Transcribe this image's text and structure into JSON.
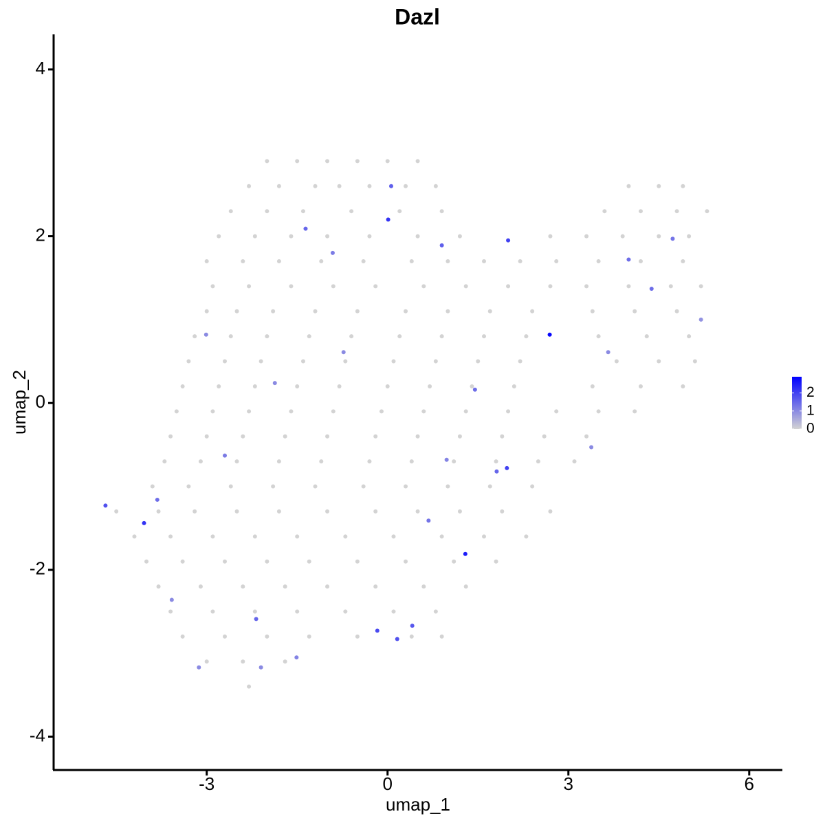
{
  "chart_data": {
    "type": "scatter",
    "title": "Dazl",
    "x_label": "umap_1",
    "y_label": "umap_2",
    "xlim": [
      -5.54,
      6.55
    ],
    "ylim": [
      -4.4,
      4.42
    ],
    "xticks": [
      -3,
      0,
      3,
      6
    ],
    "yticks": [
      -4,
      -2,
      0,
      2,
      4
    ],
    "color_low": "#d3d3d3",
    "color_high": "#0000ff",
    "clim": [
      0,
      2.9
    ],
    "cticks": [
      0,
      1,
      2
    ],
    "x": [
      -2.0,
      -1.5,
      -1.0,
      -0.5,
      0.0,
      0.5,
      -2.3,
      -1.8,
      -1.2,
      -0.8,
      -0.3,
      0.3,
      0.8,
      4.0,
      4.5,
      4.9,
      -2.6,
      -2.0,
      -1.4,
      -0.6,
      0.2,
      0.9,
      3.6,
      4.2,
      4.8,
      5.3,
      -2.8,
      -2.2,
      -1.6,
      -1.0,
      -0.3,
      0.5,
      1.2,
      2.7,
      3.3,
      3.9,
      4.5,
      5.0,
      -3.0,
      -2.4,
      -1.8,
      -1.1,
      -0.4,
      0.4,
      1.0,
      1.6,
      2.2,
      2.8,
      3.5,
      4.2,
      4.9,
      -2.9,
      -2.3,
      -1.6,
      -0.9,
      -0.2,
      0.6,
      1.3,
      2.0,
      2.7,
      3.3,
      4.0,
      4.7,
      5.2,
      -3.0,
      -2.5,
      -1.9,
      -1.2,
      -0.5,
      0.3,
      1.0,
      1.7,
      2.4,
      3.4,
      4.1,
      4.8,
      -3.2,
      -2.6,
      -2.0,
      -1.3,
      -0.6,
      0.2,
      0.9,
      1.6,
      2.3,
      3.5,
      4.3,
      5.0,
      -3.3,
      -2.7,
      -2.1,
      -1.4,
      -0.7,
      0.1,
      0.8,
      1.5,
      2.2,
      3.8,
      4.5,
      5.1,
      -3.4,
      -2.8,
      -2.2,
      -1.5,
      -0.8,
      0.0,
      0.7,
      1.4,
      2.1,
      3.4,
      4.2,
      4.9,
      -3.5,
      -2.9,
      -2.3,
      -1.6,
      -0.9,
      -0.1,
      0.6,
      1.3,
      2.0,
      2.8,
      3.5,
      4.1,
      -3.6,
      -3.0,
      -2.4,
      -1.7,
      -1.0,
      -0.2,
      0.5,
      1.2,
      1.9,
      2.6,
      3.3,
      -3.7,
      -3.1,
      -2.5,
      -1.8,
      -1.1,
      -0.3,
      0.4,
      1.1,
      1.8,
      2.5,
      3.1,
      -3.9,
      -3.3,
      -2.6,
      -1.9,
      -1.2,
      -0.4,
      0.3,
      1.0,
      1.7,
      2.4,
      -4.5,
      -3.8,
      -3.2,
      -2.5,
      -1.8,
      -1.0,
      -0.2,
      0.5,
      1.2,
      1.9,
      2.7,
      -4.2,
      -3.6,
      -2.9,
      -2.2,
      -1.5,
      -0.7,
      0.1,
      0.9,
      1.6,
      2.3,
      -4.0,
      -3.4,
      -2.7,
      -2.0,
      -1.3,
      -0.5,
      0.3,
      1.1,
      1.8,
      -3.8,
      -3.1,
      -2.4,
      -1.7,
      -1.0,
      -0.2,
      0.6,
      1.3,
      -3.6,
      -2.9,
      -2.2,
      -1.5,
      -0.7,
      0.1,
      0.8,
      -3.4,
      -2.7,
      -2.0,
      -1.3,
      -0.5,
      0.4,
      0.9,
      -3.0,
      -2.4,
      -1.7,
      -2.3,
      2.69,
      1.29,
      -4.04,
      0.01,
      2.0,
      1.98,
      -0.17,
      0.16,
      0.41,
      0.06,
      -4.68,
      0.9,
      -1.36,
      -2.18,
      -3.82,
      1.81,
      1.45,
      4.0,
      4.38,
      4.73,
      0.68,
      -0.91,
      -2.7,
      -3.01,
      -1.87,
      -1.51,
      -2.1,
      -0.73,
      0.98,
      3.38,
      3.66,
      5.2,
      -3.58,
      -3.13
    ],
    "y": [
      2.9,
      2.9,
      2.9,
      2.9,
      2.9,
      2.9,
      2.6,
      2.6,
      2.6,
      2.6,
      2.6,
      2.6,
      2.6,
      2.6,
      2.6,
      2.6,
      2.3,
      2.3,
      2.3,
      2.3,
      2.3,
      2.3,
      2.3,
      2.3,
      2.3,
      2.3,
      2.0,
      2.0,
      2.0,
      2.0,
      2.0,
      2.0,
      2.0,
      2.0,
      2.0,
      2.0,
      2.0,
      2.0,
      1.7,
      1.7,
      1.7,
      1.7,
      1.7,
      1.7,
      1.7,
      1.7,
      1.7,
      1.7,
      1.7,
      1.7,
      1.7,
      1.4,
      1.4,
      1.4,
      1.4,
      1.4,
      1.4,
      1.4,
      1.4,
      1.4,
      1.4,
      1.4,
      1.4,
      1.4,
      1.1,
      1.1,
      1.1,
      1.1,
      1.1,
      1.1,
      1.1,
      1.1,
      1.1,
      1.1,
      1.1,
      1.1,
      0.8,
      0.8,
      0.8,
      0.8,
      0.8,
      0.8,
      0.8,
      0.8,
      0.8,
      0.8,
      0.8,
      0.8,
      0.5,
      0.5,
      0.5,
      0.5,
      0.5,
      0.5,
      0.5,
      0.5,
      0.5,
      0.5,
      0.5,
      0.5,
      0.2,
      0.2,
      0.2,
      0.2,
      0.2,
      0.2,
      0.2,
      0.2,
      0.2,
      0.2,
      0.2,
      0.2,
      -0.1,
      -0.1,
      -0.1,
      -0.1,
      -0.1,
      -0.1,
      -0.1,
      -0.1,
      -0.1,
      -0.1,
      -0.1,
      -0.1,
      -0.4,
      -0.4,
      -0.4,
      -0.4,
      -0.4,
      -0.4,
      -0.4,
      -0.4,
      -0.4,
      -0.4,
      -0.4,
      -0.7,
      -0.7,
      -0.7,
      -0.7,
      -0.7,
      -0.7,
      -0.7,
      -0.7,
      -0.7,
      -0.7,
      -0.7,
      -1.0,
      -1.0,
      -1.0,
      -1.0,
      -1.0,
      -1.0,
      -1.0,
      -1.0,
      -1.0,
      -1.0,
      -1.3,
      -1.3,
      -1.3,
      -1.3,
      -1.3,
      -1.3,
      -1.3,
      -1.3,
      -1.3,
      -1.3,
      -1.3,
      -1.6,
      -1.6,
      -1.6,
      -1.6,
      -1.6,
      -1.6,
      -1.6,
      -1.6,
      -1.6,
      -1.6,
      -1.9,
      -1.9,
      -1.9,
      -1.9,
      -1.9,
      -1.9,
      -1.9,
      -1.9,
      -1.9,
      -2.2,
      -2.2,
      -2.2,
      -2.2,
      -2.2,
      -2.2,
      -2.2,
      -2.2,
      -2.5,
      -2.5,
      -2.5,
      -2.5,
      -2.5,
      -2.5,
      -2.5,
      -2.8,
      -2.8,
      -2.8,
      -2.8,
      -2.8,
      -2.8,
      -2.8,
      -3.1,
      -3.1,
      -3.1,
      -3.4,
      0.82,
      -1.81,
      -1.44,
      2.2,
      1.95,
      -0.78,
      -2.73,
      -2.83,
      -2.67,
      2.6,
      -1.23,
      1.89,
      2.09,
      -2.59,
      -1.16,
      -0.82,
      0.16,
      1.72,
      1.37,
      1.97,
      -1.41,
      1.8,
      -0.63,
      0.82,
      0.24,
      -3.05,
      -3.17,
      0.61,
      -0.68,
      -0.53,
      0.61,
      1.0,
      -2.36,
      -3.17
    ],
    "values": [
      0,
      0,
      0,
      0,
      0,
      0,
      0,
      0,
      0,
      0,
      0,
      0,
      0,
      0,
      0,
      0,
      0,
      0,
      0,
      0,
      0,
      0,
      0,
      0,
      0,
      0,
      0,
      0,
      0,
      0,
      0,
      0,
      0,
      0,
      0,
      0,
      0,
      0,
      0,
      0,
      0,
      0,
      0,
      0,
      0,
      0,
      0,
      0,
      0,
      0,
      0,
      0,
      0,
      0,
      0,
      0,
      0,
      0,
      0,
      0,
      0,
      0,
      0,
      0,
      0,
      0,
      0,
      0,
      0,
      0,
      0,
      0,
      0,
      0,
      0,
      0,
      0,
      0,
      0,
      0,
      0,
      0,
      0,
      0,
      0,
      0,
      0,
      0,
      0,
      0,
      0,
      0,
      0,
      0,
      0,
      0,
      0,
      0,
      0,
      0,
      0,
      0,
      0,
      0,
      0,
      0,
      0,
      0,
      0,
      0,
      0,
      0,
      0,
      0,
      0,
      0,
      0,
      0,
      0,
      0,
      0,
      0,
      0,
      0,
      0,
      0,
      0,
      0,
      0,
      0,
      0,
      0,
      0,
      0,
      0,
      0,
      0,
      0,
      0,
      0,
      0,
      0,
      0,
      0,
      0,
      0,
      0,
      0,
      0,
      0,
      0,
      0,
      0,
      0,
      0,
      0,
      0,
      0,
      0,
      0,
      0,
      0,
      0,
      0,
      0,
      0,
      0,
      0,
      0,
      0,
      0,
      0,
      0,
      0,
      0,
      0,
      0,
      0,
      0,
      0,
      0,
      0,
      0,
      0,
      0,
      0,
      0,
      0,
      0,
      0,
      0,
      0,
      0,
      0,
      0,
      0,
      0,
      0,
      0,
      0,
      0,
      0,
      0,
      0,
      0,
      0,
      0,
      0,
      0,
      0,
      0,
      0,
      2.8,
      2.5,
      2.2,
      2.2,
      2.0,
      2.0,
      1.9,
      1.8,
      1.7,
      1.6,
      1.8,
      1.6,
      1.5,
      1.5,
      1.4,
      1.5,
      1.4,
      1.4,
      1.4,
      1.3,
      1.3,
      1.2,
      1.2,
      1.0,
      1.0,
      1.1,
      1.0,
      1.0,
      1.1,
      1.0,
      1.0,
      0.9,
      1.0,
      1.0
    ]
  }
}
